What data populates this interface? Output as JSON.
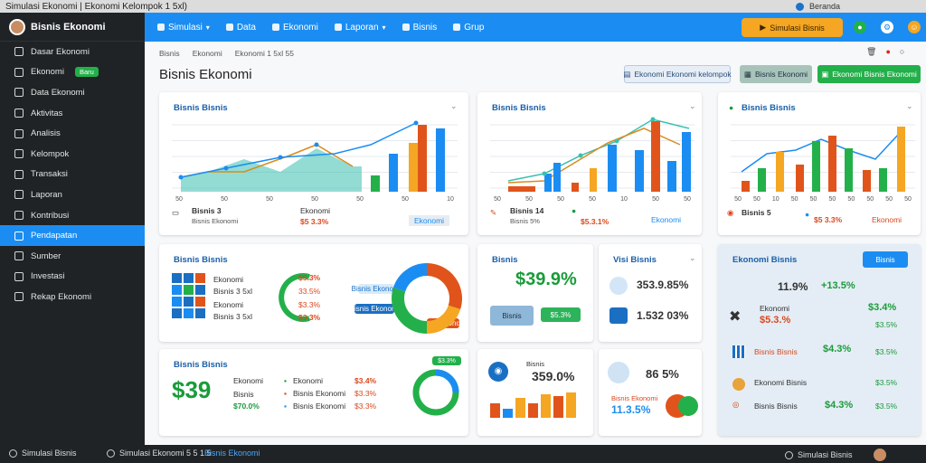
{
  "window": {
    "title": "Simulasi Ekonomi | Ekonomi Kelompok 1 5xl)",
    "right_label": "Beranda"
  },
  "sidebar": {
    "brand": "Bisnis Ekonomi",
    "items": [
      {
        "label": "Dasar Ekonomi",
        "icon": "home-icon"
      },
      {
        "label": "Ekonomi",
        "icon": "box-icon",
        "badge": "Baru"
      },
      {
        "label": "Data Ekonomi",
        "icon": "chart-icon"
      },
      {
        "label": "Aktivitas",
        "icon": "calendar-icon"
      },
      {
        "label": "Analisis",
        "icon": "folder-icon"
      },
      {
        "label": "Kelompok",
        "icon": "list-icon"
      },
      {
        "label": "Transaksi",
        "icon": "grid-icon"
      },
      {
        "label": "Laporan",
        "icon": "report-icon"
      },
      {
        "label": "Kontribusi",
        "icon": "gear-icon"
      },
      {
        "label": "Pendapatan",
        "icon": "coin-icon",
        "active": true
      },
      {
        "label": "Sumber",
        "icon": "globe-icon"
      },
      {
        "label": "Investasi",
        "icon": "tools-icon"
      },
      {
        "label": "Rekap Ekonomi",
        "icon": "help-icon"
      }
    ]
  },
  "topbar": {
    "nav": [
      {
        "label": "Simulasi",
        "caret": true
      },
      {
        "label": "Data"
      },
      {
        "label": "Ekonomi"
      },
      {
        "label": "Laporan",
        "caret": true
      },
      {
        "label": "Bisnis"
      },
      {
        "label": "Grup"
      }
    ],
    "cta_label": "Simulasi Bisnis"
  },
  "breadcrumbs": [
    "Bisnis",
    "Ekonomi",
    "Ekonomi 1 5xl 55"
  ],
  "page_title": "Bisnis Ekonomi",
  "actions": {
    "secondary": "Ekonomi Ekonomi kelompok",
    "tertiary": "Bisnis Ekonomi",
    "primary": "Ekonomi Bisnis Ekonomi"
  },
  "cards": {
    "c1": {
      "title": "Bisnis Bisnis",
      "stat_label": "Bisnis 3",
      "stat_sub": "Bisnis Ekonomi",
      "stat2_label": "Ekonomi",
      "stat2_value": "$5 3.3%",
      "link_label": "Ekonomi",
      "xticks": [
        "50",
        "50",
        "50",
        "50",
        "50",
        "50",
        "10"
      ]
    },
    "c2": {
      "title": "Bisnis Bisnis",
      "stat_label": "Bisnis 14",
      "stat_sub": "Bisnis 5%",
      "stat2_value": "$5.3.1%",
      "link_label": "Ekonomi",
      "xticks": [
        "50",
        "50",
        "50",
        "50",
        "10",
        "50",
        "50"
      ]
    },
    "c3": {
      "title": "Bisnis Bisnis",
      "stat_label": "Bisnis 5",
      "stat2_value": "$5 3.3%",
      "link_label": "Ekonomi",
      "xticks": [
        "50",
        "50",
        "10",
        "50",
        "50",
        "50",
        "50",
        "50",
        "50",
        "50"
      ]
    },
    "c4": {
      "title": "Bisnis Bisnis",
      "rows": [
        "Ekonomi",
        "Bisnis 3 5xl",
        "Ekonomi",
        "Bisnis 3 5xl"
      ],
      "values": [
        "$5.3%",
        "33.5%",
        "$3.3%",
        "$3.3%"
      ],
      "legend": [
        "Bisnis Ekonomi",
        "Bisnis Ekonomi",
        "Bisnis Ekonomi"
      ]
    },
    "c5": {
      "title": "Bisnis",
      "value": "$39.9%",
      "badge1": "Bisnis",
      "badge2": "$5.3%"
    },
    "c6": {
      "title": "Visi Bisnis",
      "value1": "353.9.85%",
      "value2": "1.532 03%"
    },
    "c7": {
      "title": "Ekonomi Bisnis",
      "btn": "Bisnis",
      "kpi1": "11.9%",
      "kpi2": "+13.5%",
      "rows": [
        {
          "label": "Ekonomi",
          "value": "$5.3.%",
          "right": "$3.4%",
          "right_sub": "$3.5%"
        },
        {
          "label": "Bisnis Bisnis",
          "right": "$4.3%",
          "right_sub": "$3.5%"
        },
        {
          "label": "Ekonomi Bisnis",
          "right": "$3.5%"
        },
        {
          "label": "Bisnis Bisnis",
          "right": "$4.3%",
          "right_sub": "$3.5%"
        }
      ]
    },
    "c8": {
      "title": "Bisnis Bisnis",
      "value": "$39",
      "rows": [
        "Ekonomi",
        "Bisnis",
        "$70.0%"
      ],
      "legend": [
        "Ekonomi",
        "Bisnis Ekonomi",
        "Bisnis Ekonomi"
      ],
      "legend_vals": [
        "$3.4%",
        "$3.3%",
        "$3.3%"
      ],
      "donut_label": "$3.3%"
    },
    "c9": {
      "value": "359.0%",
      "label": "Bisnis"
    },
    "c10": {
      "value": "86 5%",
      "label": "Bisnis Ekonomi",
      "value2": "11.3.5%"
    }
  },
  "status": {
    "left": "Simulasi Bisnis",
    "mid": "Simulasi Ekonomi 5 5 1 5",
    "mid2": "Bisnis Ekonomi",
    "right": "Simulasi Bisnis"
  },
  "colors": {
    "blue": "#1b8df2",
    "orange": "#f5a623",
    "green": "#23b04a",
    "red": "#e0541b",
    "teal": "#3bc0b0",
    "navy": "#1f2326"
  }
}
